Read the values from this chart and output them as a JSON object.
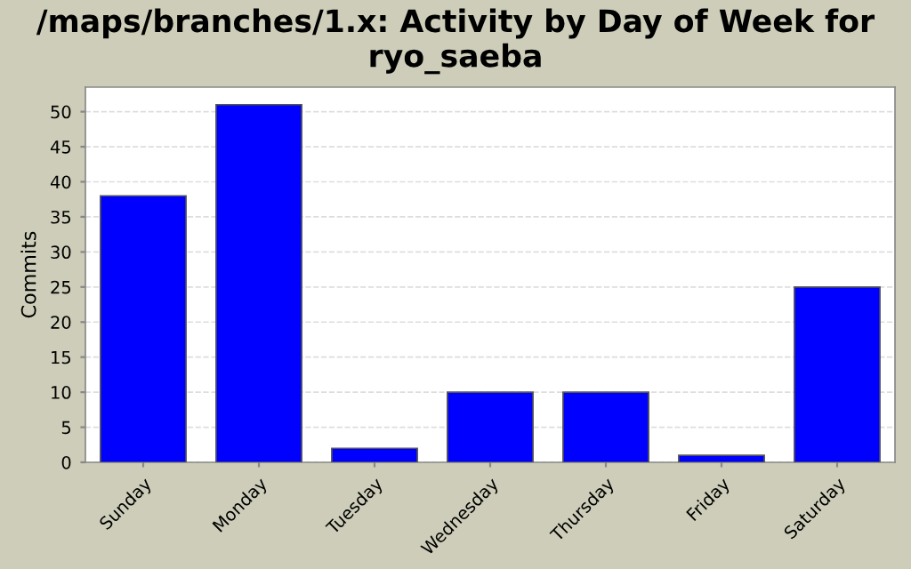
{
  "chart_data": {
    "type": "bar",
    "title": "/maps/branches/1.x: Activity by Day of Week for ryo_saeba",
    "ylabel": "Commits",
    "categories": [
      "Sunday",
      "Monday",
      "Tuesday",
      "Wednesday",
      "Thursday",
      "Friday",
      "Saturday"
    ],
    "values": [
      38,
      51,
      2,
      10,
      10,
      1,
      25
    ],
    "color": "#0000ff",
    "ylim": [
      0,
      53.5
    ],
    "yticks": [
      0,
      5,
      10,
      15,
      20,
      25,
      30,
      35,
      40,
      45,
      50
    ],
    "grid": "y"
  }
}
